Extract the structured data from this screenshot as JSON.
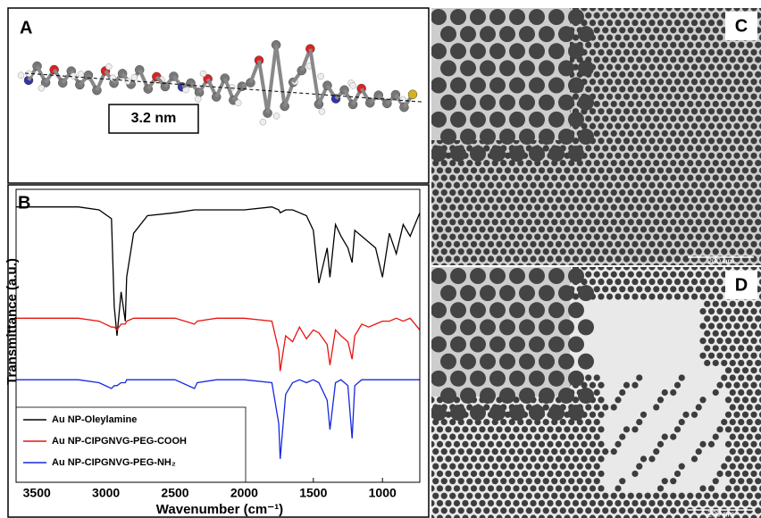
{
  "panel_labels": [
    "A",
    "B",
    "C",
    "D"
  ],
  "molecule": {
    "length_label": "3.2 nm"
  },
  "micrographs": [
    {
      "scale_bar": "200 nm"
    },
    {
      "scale_bar": "200 nm"
    }
  ],
  "chart_data": {
    "type": "line",
    "xlabel": "Wavenumber (cm⁻¹)",
    "ylabel": "Transmittance (a.u.)",
    "x": [
      3650,
      3500,
      3200,
      3050,
      2960,
      2940,
      2920,
      2890,
      2860,
      2850,
      2800,
      2700,
      2500,
      2360,
      2340,
      2200,
      2000,
      1800,
      1750,
      1740,
      1700,
      1650,
      1600,
      1550,
      1500,
      1460,
      1400,
      1380,
      1340,
      1300,
      1250,
      1220,
      1200,
      1150,
      1100,
      1050,
      1000,
      950,
      900,
      850,
      800,
      730
    ],
    "series": [
      {
        "name": "Au NP-Oleylamine",
        "color": "#000000",
        "values": [
          94,
          94,
          94,
          93,
          90,
          60,
          50,
          65,
          55,
          70,
          85,
          91,
          92,
          93,
          93,
          93,
          93,
          94,
          93,
          92,
          93,
          93,
          92,
          91,
          86,
          68,
          80,
          70,
          88,
          84,
          80,
          75,
          86,
          84,
          82,
          80,
          70,
          85,
          78,
          88,
          84,
          92
        ]
      },
      {
        "name": "Au NP-CIPGNVG-PEG-COOH",
        "color": "#e8140f",
        "values": [
          56,
          56,
          56,
          55,
          53,
          53,
          52,
          54,
          54,
          55,
          56,
          56,
          56,
          54,
          55,
          56,
          56,
          55,
          45,
          38,
          50,
          48,
          53,
          49,
          52,
          51,
          47,
          40,
          52,
          50,
          48,
          42,
          50,
          54,
          53,
          54,
          55,
          55,
          56,
          55,
          56,
          52
        ]
      },
      {
        "name": "Au NP-CIPGNVG-PEG-NH₂",
        "color": "#1528e0",
        "values": [
          35,
          35,
          35,
          34,
          32,
          33,
          33,
          34,
          34,
          35,
          35,
          35,
          35,
          32,
          34,
          35,
          35,
          34,
          20,
          8,
          30,
          34,
          35,
          34,
          35,
          34,
          28,
          18,
          34,
          35,
          33,
          15,
          33,
          35,
          35,
          35,
          35,
          35,
          35,
          35,
          35,
          35
        ]
      }
    ],
    "xlim": [
      3650,
      730
    ],
    "ylim": [
      0,
      100
    ],
    "xticks": [
      3500,
      3000,
      2500,
      2000,
      1500,
      1000
    ],
    "legend": "lower left"
  }
}
